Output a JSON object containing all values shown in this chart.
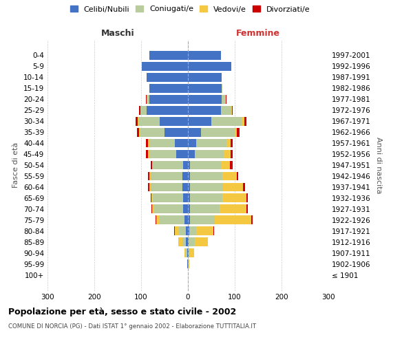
{
  "age_groups": [
    "100+",
    "95-99",
    "90-94",
    "85-89",
    "80-84",
    "75-79",
    "70-74",
    "65-69",
    "60-64",
    "55-59",
    "50-54",
    "45-49",
    "40-44",
    "35-39",
    "30-34",
    "25-29",
    "20-24",
    "15-19",
    "10-14",
    "5-9",
    "0-4"
  ],
  "birth_years": [
    "≤ 1901",
    "1902-1906",
    "1907-1911",
    "1912-1916",
    "1917-1921",
    "1922-1926",
    "1927-1931",
    "1932-1936",
    "1937-1941",
    "1942-1946",
    "1947-1951",
    "1952-1956",
    "1957-1961",
    "1962-1966",
    "1967-1971",
    "1972-1976",
    "1977-1981",
    "1982-1986",
    "1987-1991",
    "1992-1996",
    "1997-2001"
  ],
  "males": {
    "celibi": [
      0,
      1,
      2,
      4,
      5,
      8,
      10,
      10,
      12,
      12,
      10,
      25,
      28,
      50,
      60,
      88,
      82,
      82,
      88,
      98,
      82
    ],
    "coniugati": [
      0,
      1,
      3,
      8,
      14,
      52,
      62,
      65,
      68,
      68,
      65,
      58,
      55,
      52,
      46,
      13,
      5,
      1,
      0,
      0,
      0
    ],
    "vedovi": [
      0,
      0,
      2,
      8,
      9,
      8,
      5,
      3,
      2,
      2,
      2,
      2,
      2,
      2,
      2,
      1,
      1,
      0,
      0,
      0,
      0
    ],
    "divorziati": [
      0,
      0,
      0,
      0,
      1,
      1,
      1,
      2,
      3,
      3,
      2,
      5,
      5,
      5,
      4,
      2,
      1,
      0,
      0,
      0,
      0
    ]
  },
  "females": {
    "nubili": [
      0,
      0,
      1,
      2,
      3,
      5,
      5,
      5,
      5,
      5,
      5,
      15,
      18,
      28,
      50,
      70,
      72,
      72,
      72,
      92,
      70
    ],
    "coniugate": [
      0,
      1,
      4,
      12,
      15,
      52,
      62,
      68,
      70,
      68,
      65,
      62,
      65,
      72,
      65,
      22,
      8,
      2,
      0,
      0,
      0
    ],
    "vedove": [
      0,
      2,
      8,
      28,
      36,
      78,
      58,
      52,
      42,
      32,
      20,
      14,
      8,
      5,
      5,
      2,
      1,
      0,
      0,
      0,
      0
    ],
    "divorziate": [
      0,
      0,
      0,
      1,
      2,
      3,
      3,
      3,
      5,
      3,
      5,
      5,
      5,
      5,
      5,
      2,
      1,
      0,
      0,
      0,
      0
    ]
  },
  "colors": {
    "celibi_nubili": "#4472c4",
    "coniugati": "#b8cc9e",
    "vedovi": "#f5c842",
    "divorziati": "#cc0000"
  },
  "title": "Popolazione per età, sesso e stato civile - 2002",
  "subtitle": "COMUNE DI NORCIA (PG) - Dati ISTAT 1° gennaio 2002 - Elaborazione TUTTITALIA.IT",
  "ylabel_left": "Fasce di età",
  "ylabel_right": "Anni di nascita",
  "xlabel_left": "Maschi",
  "xlabel_right": "Femmine",
  "xlim": 300,
  "bg_color": "#ffffff",
  "grid_color": "#cccccc",
  "legend_labels": [
    "Celibi/Nubili",
    "Coniugati/e",
    "Vedovi/e",
    "Divorziati/e"
  ]
}
